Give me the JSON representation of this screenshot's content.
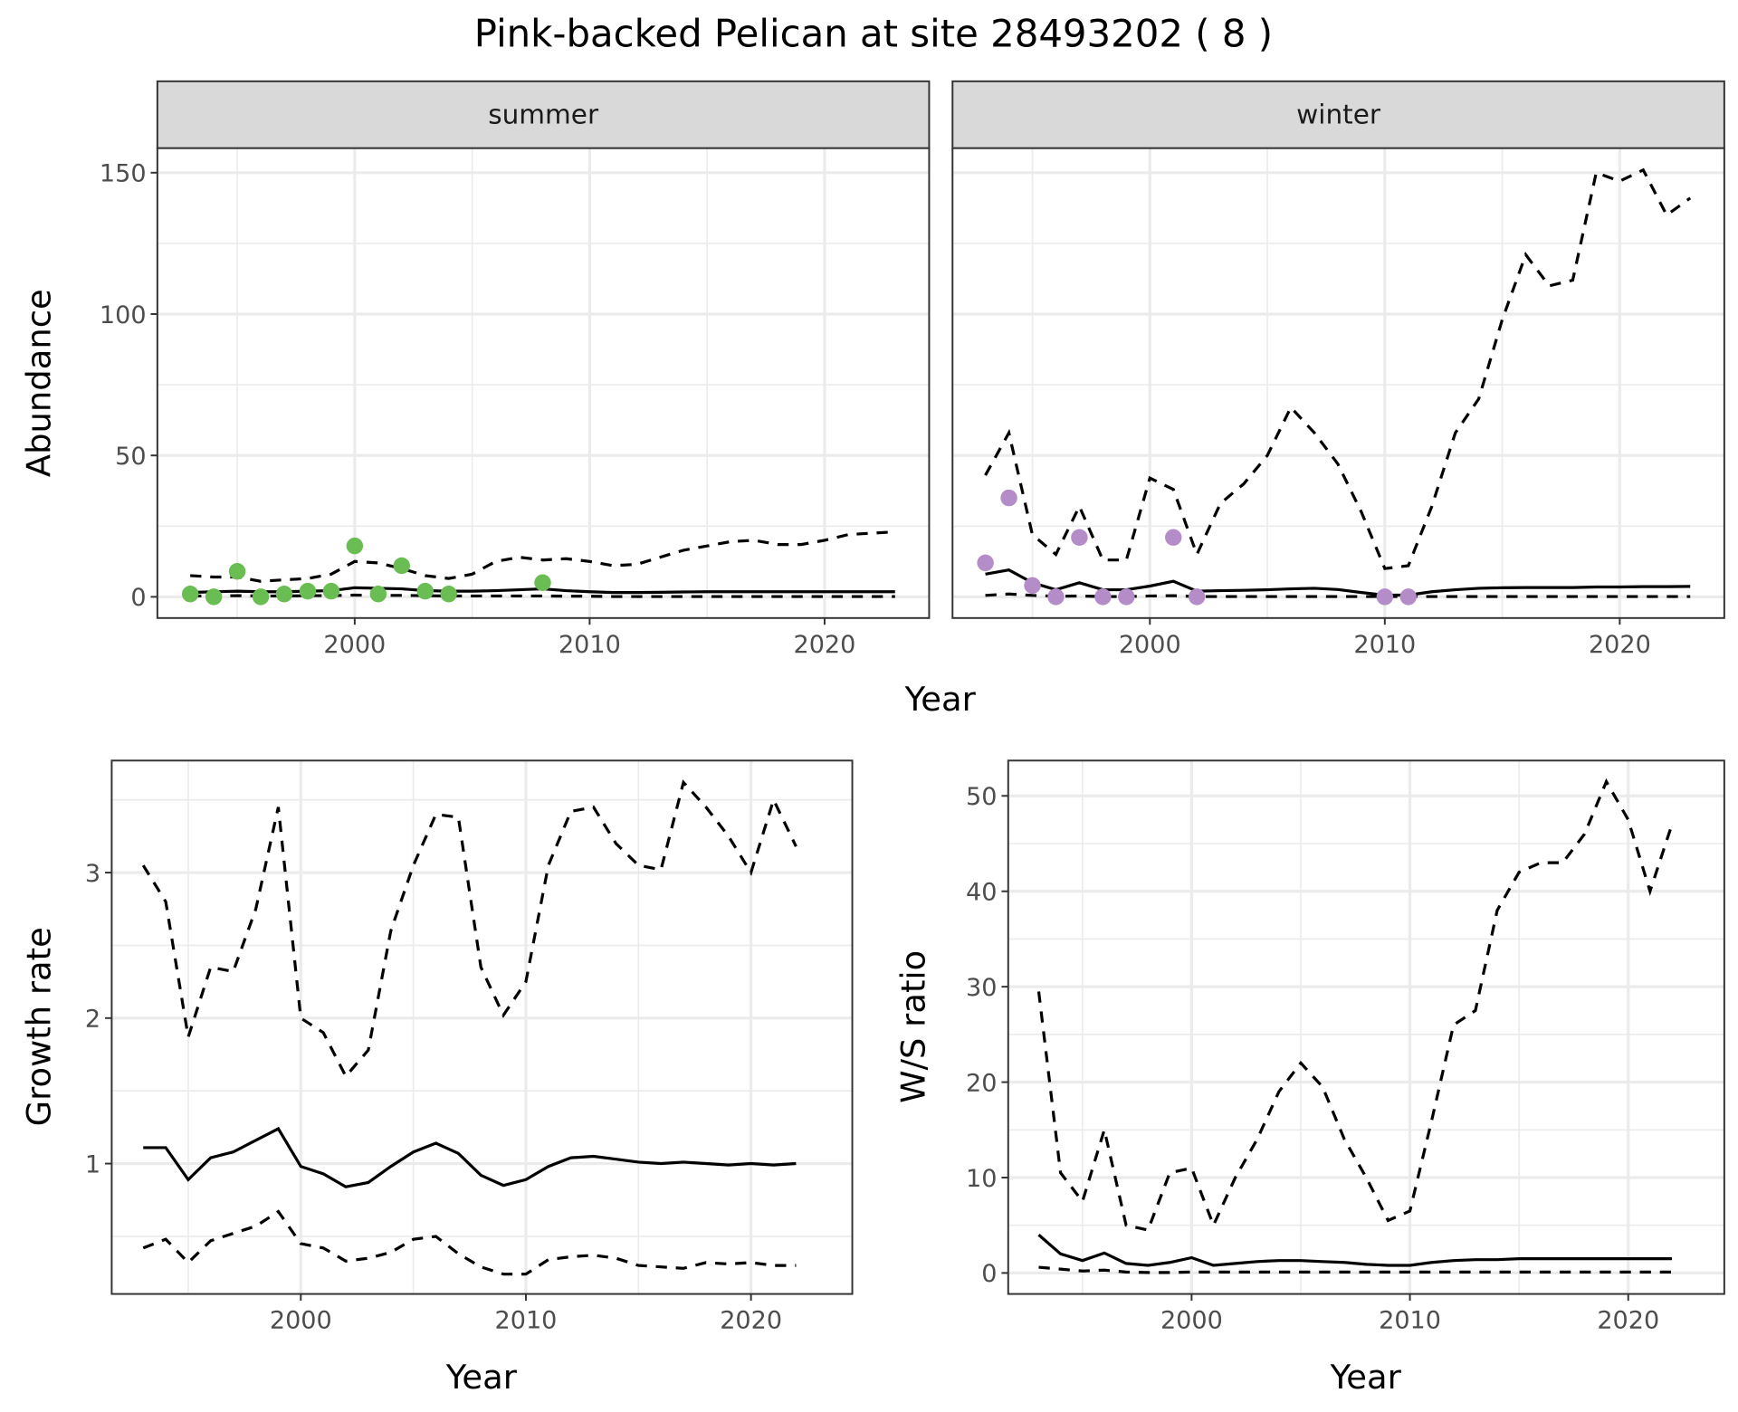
{
  "title": "Pink-backed Pelican at site 28493202 ( 8 )",
  "colors": {
    "summer": "#6abd52",
    "winter": "#b48cc8",
    "strip": "#d9d9d9",
    "grid": "#ebebeb"
  },
  "chart_data": [
    {
      "type": "line",
      "id": "abundance",
      "facet_strips": [
        "summer",
        "winter"
      ],
      "xlabel": "Year",
      "ylabel": "Abundance",
      "xlim": [
        1991.6,
        2024.45
      ],
      "ylim": [
        -7.5,
        158.7
      ],
      "xticks": [
        2000,
        2010,
        2020
      ],
      "xtick_labels": [
        "2000",
        "2010",
        "2020"
      ],
      "yticks": [
        0,
        50,
        100,
        150
      ],
      "ytick_labels": [
        "0",
        "50",
        "100",
        "150"
      ],
      "panels": [
        {
          "name": "summer",
          "years": [
            1993,
            1994,
            1995,
            1996,
            1997,
            1998,
            1999,
            2000,
            2001,
            2002,
            2003,
            2004,
            2005,
            2006,
            2007,
            2008,
            2009,
            2010,
            2011,
            2012,
            2013,
            2014,
            2015,
            2016,
            2017,
            2018,
            2019,
            2020,
            2021,
            2022,
            2023
          ],
          "mean": [
            1.5,
            1.8,
            2,
            1.8,
            1.8,
            2,
            2.2,
            3.2,
            3,
            2.8,
            2.2,
            2,
            2,
            2.2,
            2.5,
            2.8,
            2.2,
            1.8,
            1.5,
            1.5,
            1.6,
            1.7,
            1.8,
            1.8,
            1.8,
            1.8,
            1.8,
            1.8,
            1.8,
            1.8,
            1.8
          ],
          "upper": [
            7.5,
            7,
            7,
            5.5,
            6,
            6.5,
            8,
            12.5,
            12,
            10,
            7.5,
            6.5,
            8,
            12.5,
            14,
            13,
            13.5,
            12.5,
            11,
            11.5,
            14,
            16.5,
            18,
            19.5,
            20,
            18.5,
            18.5,
            20,
            22,
            22.5,
            23
          ],
          "lower": [
            0.3,
            0.3,
            0.4,
            0.3,
            0.3,
            0.4,
            0.4,
            0.6,
            0.5,
            0.5,
            0.4,
            0.3,
            0.3,
            0.3,
            0.3,
            0.3,
            0.2,
            0.2,
            0.1,
            0.1,
            0.1,
            0.1,
            0.1,
            0.1,
            0.1,
            0.1,
            0.1,
            0.1,
            0.1,
            0.1,
            0.1
          ],
          "observed": {
            "years": [
              1993,
              1994,
              1995,
              1996,
              1997,
              1998,
              1999,
              2000,
              2001,
              2002,
              2003,
              2004,
              2008
            ],
            "values": [
              1,
              0,
              9,
              0,
              1,
              2,
              2,
              18,
              1,
              11,
              2,
              1,
              5
            ]
          }
        },
        {
          "name": "winter",
          "years": [
            1993,
            1994,
            1995,
            1996,
            1997,
            1998,
            1999,
            2000,
            2001,
            2002,
            2003,
            2004,
            2005,
            2006,
            2007,
            2008,
            2009,
            2010,
            2011,
            2012,
            2013,
            2014,
            2015,
            2016,
            2017,
            2018,
            2019,
            2020,
            2021,
            2022,
            2023
          ],
          "mean": [
            8,
            9.5,
            5,
            2.5,
            5,
            2.5,
            2.5,
            3.8,
            5.5,
            2,
            2.2,
            2.3,
            2.5,
            2.8,
            3,
            2.6,
            1.5,
            0.6,
            0.6,
            1.8,
            2.5,
            3,
            3.2,
            3.3,
            3.3,
            3.3,
            3.5,
            3.5,
            3.6,
            3.6,
            3.7
          ],
          "upper": [
            43,
            58,
            22,
            15,
            32,
            13,
            13,
            42,
            38,
            15,
            33,
            40,
            50,
            67,
            58,
            47,
            30,
            10,
            11,
            32,
            58,
            70,
            98,
            121,
            110,
            112,
            150,
            147,
            151,
            135,
            141
          ],
          "lower": [
            0.5,
            1,
            0.5,
            0.2,
            0.3,
            0.1,
            0.1,
            0.3,
            0.4,
            0.1,
            0.1,
            0.1,
            0.1,
            0.1,
            0.1,
            0.1,
            0.1,
            0.1,
            0.1,
            0.1,
            0.1,
            0.1,
            0.1,
            0.1,
            0.1,
            0.1,
            0.1,
            0.1,
            0.1,
            0.1,
            0.1
          ],
          "observed": {
            "years": [
              1993,
              1994,
              1995,
              1996,
              1997,
              1998,
              1999,
              2001,
              2002,
              2010,
              2011
            ],
            "values": [
              12,
              35,
              4,
              0,
              21,
              0,
              0,
              21,
              0,
              0,
              0
            ]
          }
        }
      ]
    },
    {
      "type": "line",
      "id": "growth",
      "xlabel": "Year",
      "ylabel": "Growth rate",
      "xlim": [
        1991.6,
        2024.5
      ],
      "ylim": [
        0.104,
        3.77
      ],
      "xticks": [
        2000,
        2010,
        2020
      ],
      "xtick_labels": [
        "2000",
        "2010",
        "2020"
      ],
      "yticks": [
        1,
        2,
        3
      ],
      "ytick_labels": [
        "1",
        "2",
        "3"
      ],
      "years": [
        1993,
        1994,
        1995,
        1996,
        1997,
        1998,
        1999,
        2000,
        2001,
        2002,
        2003,
        2004,
        2005,
        2006,
        2007,
        2008,
        2009,
        2010,
        2011,
        2012,
        2013,
        2014,
        2015,
        2016,
        2017,
        2018,
        2019,
        2020,
        2021,
        2022
      ],
      "mean": [
        1.11,
        1.11,
        0.89,
        1.04,
        1.08,
        1.16,
        1.24,
        0.98,
        0.93,
        0.84,
        0.87,
        0.98,
        1.08,
        1.14,
        1.07,
        0.92,
        0.85,
        0.89,
        0.98,
        1.04,
        1.05,
        1.03,
        1.01,
        1.0,
        1.01,
        1.0,
        0.99,
        1.0,
        0.99,
        1.0
      ],
      "upper": [
        3.05,
        2.8,
        1.87,
        2.35,
        2.32,
        2.75,
        3.45,
        2.0,
        1.9,
        1.6,
        1.78,
        2.6,
        3.05,
        3.4,
        3.38,
        2.35,
        2.02,
        2.25,
        3.05,
        3.42,
        3.45,
        3.2,
        3.05,
        3.02,
        3.62,
        3.45,
        3.25,
        3.0,
        3.5,
        3.18
      ],
      "lower": [
        0.42,
        0.48,
        0.32,
        0.47,
        0.52,
        0.57,
        0.67,
        0.45,
        0.42,
        0.33,
        0.35,
        0.39,
        0.48,
        0.5,
        0.38,
        0.29,
        0.24,
        0.24,
        0.34,
        0.36,
        0.37,
        0.35,
        0.3,
        0.29,
        0.28,
        0.32,
        0.31,
        0.32,
        0.3,
        0.3
      ]
    },
    {
      "type": "line",
      "id": "ratio",
      "xlabel": "Year",
      "ylabel": "W/S ratio",
      "xlim": [
        1991.6,
        2024.4
      ],
      "ylim": [
        -2.2,
        53.7
      ],
      "xticks": [
        2000,
        2010,
        2020
      ],
      "xtick_labels": [
        "2000",
        "2010",
        "2020"
      ],
      "yticks": [
        0,
        10,
        20,
        30,
        40,
        50
      ],
      "ytick_labels": [
        "0",
        "10",
        "20",
        "30",
        "40",
        "50"
      ],
      "years": [
        1993,
        1994,
        1995,
        1996,
        1997,
        1998,
        1999,
        2000,
        2001,
        2002,
        2003,
        2004,
        2005,
        2006,
        2007,
        2008,
        2009,
        2010,
        2011,
        2012,
        2013,
        2014,
        2015,
        2016,
        2017,
        2018,
        2019,
        2020,
        2021,
        2022
      ],
      "mean": [
        4,
        2,
        1.3,
        2.1,
        1,
        0.8,
        1.1,
        1.6,
        0.8,
        1,
        1.2,
        1.3,
        1.3,
        1.2,
        1.1,
        0.9,
        0.8,
        0.8,
        1.1,
        1.3,
        1.4,
        1.4,
        1.5,
        1.5,
        1.5,
        1.5,
        1.5,
        1.5,
        1.5,
        1.5
      ],
      "upper": [
        29.5,
        10.5,
        7.5,
        15,
        5,
        4.5,
        10.5,
        11,
        5,
        10,
        14,
        19,
        22,
        19.5,
        14,
        10,
        5.5,
        6.5,
        16,
        26,
        27.5,
        38,
        42,
        43,
        43,
        46,
        51.5,
        47.5,
        40,
        47
      ],
      "lower": [
        0.6,
        0.4,
        0.2,
        0.3,
        0.1,
        0.05,
        0.05,
        0.1,
        0.1,
        0.1,
        0.1,
        0.1,
        0.1,
        0.1,
        0.1,
        0.1,
        0.1,
        0.1,
        0.1,
        0.1,
        0.1,
        0.1,
        0.1,
        0.1,
        0.1,
        0.1,
        0.1,
        0.1,
        0.1,
        0.1
      ]
    }
  ]
}
